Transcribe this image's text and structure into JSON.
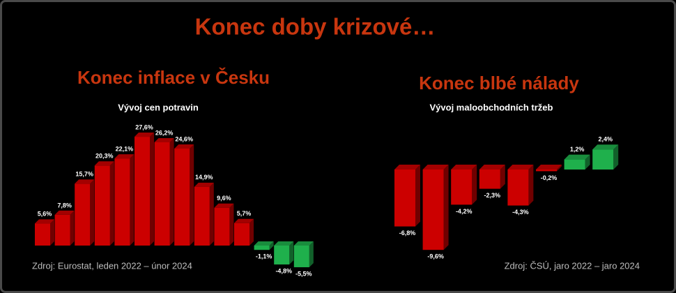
{
  "header": {
    "title": "Konec doby krizové…"
  },
  "chart_data": [
    {
      "type": "bar",
      "title": "Konec inflace v Česku",
      "subtitle": "Vývoj cen potravin",
      "values": [
        5.6,
        7.8,
        15.7,
        20.3,
        22.1,
        27.6,
        26.2,
        24.6,
        14.9,
        9.6,
        5.7,
        -1.1,
        -4.8,
        -5.5
      ],
      "value_labels": [
        "5,6%",
        "7,8%",
        "15,7%",
        "20,3%",
        "22,1%",
        "27,6%",
        "26,2%",
        "24,6%",
        "14,9%",
        "9,6%",
        "5,7%",
        "-1,1%",
        "-4,8%",
        "-5,5%"
      ],
      "positive_color": "#cc0000",
      "negative_color": "#1fb04c",
      "source": "Zdroj: Eurostat, leden 2022 – únor 2024"
    },
    {
      "type": "bar",
      "title": "Konec blbé nálady",
      "subtitle": "Vývoj maloobchodních tržeb",
      "values": [
        -6.8,
        -9.6,
        -4.2,
        -2.3,
        -4.3,
        -0.2,
        1.2,
        2.4
      ],
      "value_labels": [
        "-6,8%",
        "-9,6%",
        "-4,2%",
        "-2,3%",
        "-4,3%",
        "-0,2%",
        "1,2%",
        "2,4%"
      ],
      "positive_color": "#1fb04c",
      "negative_color": "#cc0000",
      "source": "Zdroj: ČSÚ, jaro 2022 – jaro 2024"
    }
  ]
}
